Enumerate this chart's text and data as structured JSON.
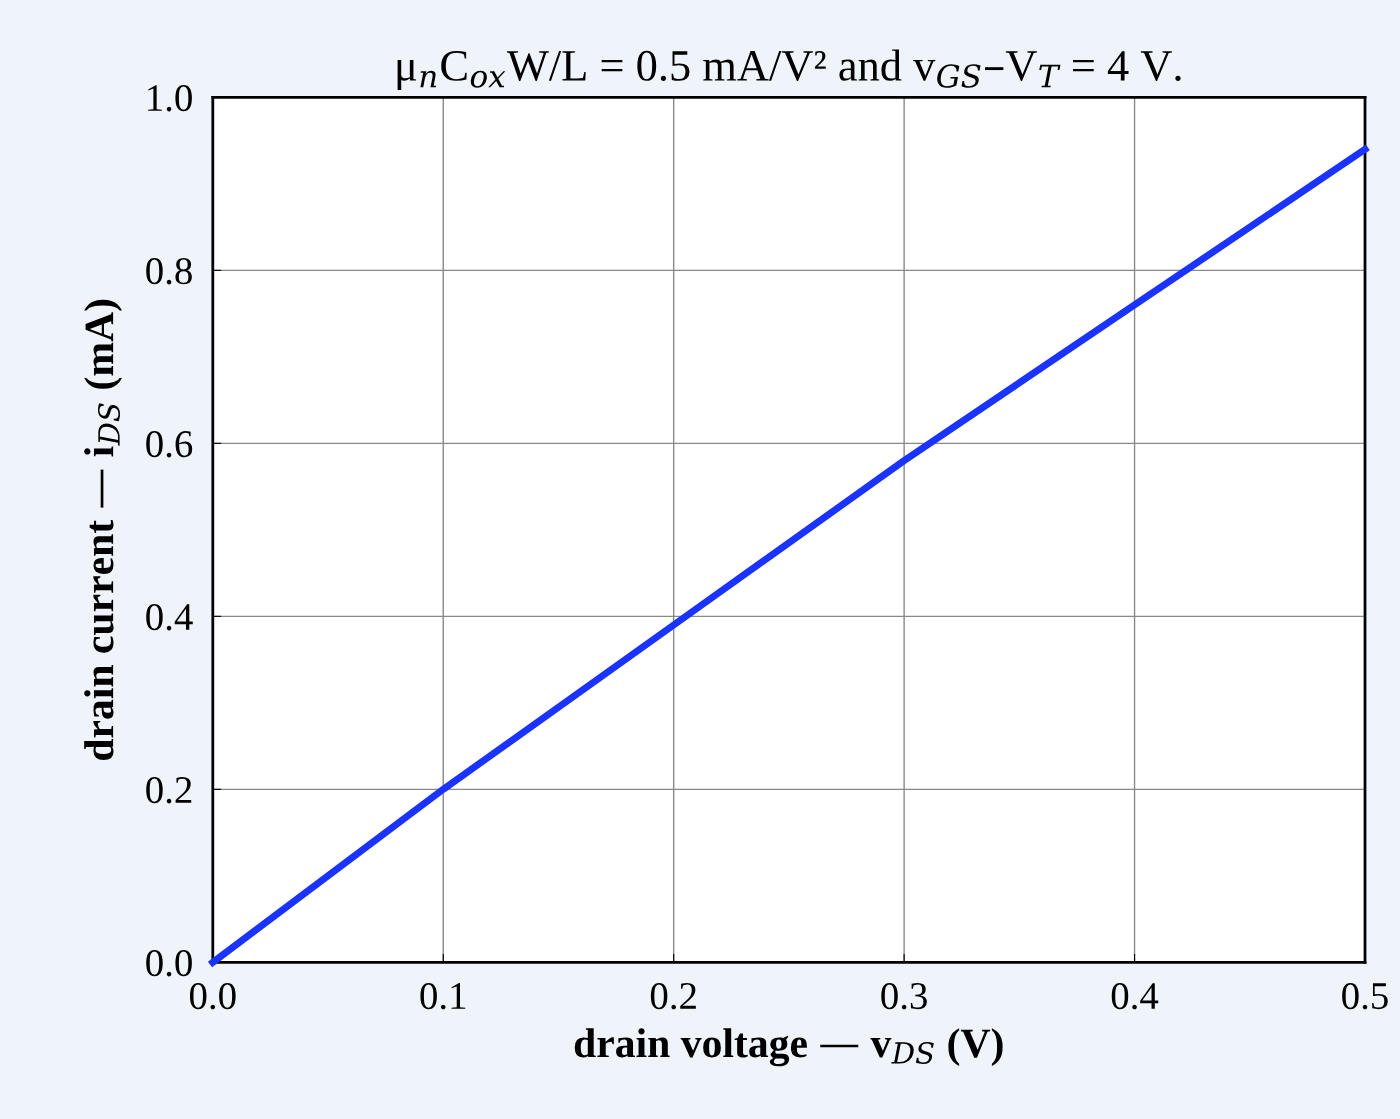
{
  "chart_data": {
    "type": "line",
    "title": "μ$_{n}$C$_{ox}$W/L = 0.5 mA/V² and v$_{GS}$–V$_{T}$ = 4 V.",
    "xlabel": "drain voltage — v$_{DS}$ (V)",
    "ylabel": "drain current — i$_{DS}$ (mA)",
    "x": [
      0,
      0.1,
      0.2,
      0.3,
      0.4,
      0.5
    ],
    "series": [
      {
        "color": "#1a33ff",
        "values": [
          0,
          0.2,
          0.39,
          0.58,
          0.76,
          0.94
        ]
      }
    ],
    "xlim": [
      0,
      0.5
    ],
    "ylim": [
      0,
      1.0
    ],
    "xticks": [
      {
        "value": 0,
        "label": "0.0"
      },
      0.1,
      0.2,
      0.3,
      0.4,
      0.5
    ],
    "yticks": [
      {
        "value": 0,
        "label": "0.0"
      },
      0.2,
      0.4,
      0.6,
      0.8,
      {
        "value": 1,
        "label": "1.0"
      }
    ],
    "grid": true,
    "marker": "none",
    "line_style": "solid"
  }
}
